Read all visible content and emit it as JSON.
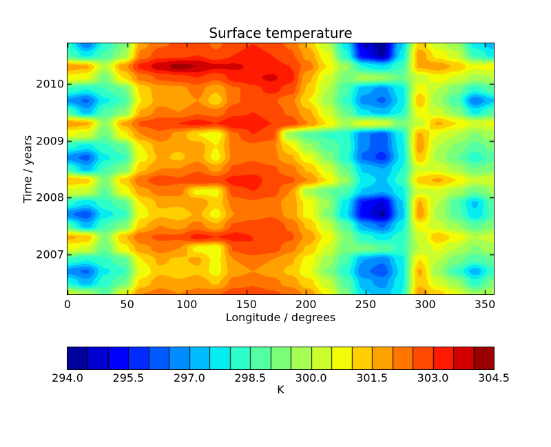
{
  "figure": {
    "background": "#ffffff",
    "text_color": "#000000"
  },
  "chart_data": {
    "type": "heatmap",
    "title": "Surface temperature",
    "xlabel": "Longitude / degrees",
    "ylabel": "Time / years",
    "colormap": "jet",
    "grid_lines": false,
    "x_range": [
      0,
      357.5
    ],
    "y_range": [
      2006.3,
      2010.71
    ],
    "x_ticks": [
      0,
      50,
      100,
      150,
      200,
      250,
      300,
      350
    ],
    "y_ticks": [
      2007,
      2008,
      2009,
      2010
    ],
    "levels": {
      "min": 294.0,
      "max": 304.5,
      "step": 0.5,
      "n_bins": 21
    },
    "colorbar": {
      "label": "K",
      "ticks": [
        294.0,
        295.5,
        297.0,
        298.5,
        300.0,
        301.5,
        303.0,
        304.5
      ]
    },
    "grid": {
      "x": [
        0,
        15.5,
        31.1,
        46.6,
        62.2,
        77.7,
        93.3,
        108.8,
        124.3,
        139.9,
        155.4,
        171.0,
        186.5,
        202.0,
        217.6,
        233.1,
        248.7,
        264.2,
        279.8,
        295.3,
        310.8,
        326.4,
        341.9,
        357.5
      ],
      "t": [
        2010.7,
        2010.5,
        2010.3,
        2010.1,
        2009.9,
        2009.7,
        2009.5,
        2009.3,
        2009.1,
        2008.9,
        2008.7,
        2008.5,
        2008.3,
        2008.1,
        2007.9,
        2007.7,
        2007.5,
        2007.3,
        2007.1,
        2006.9,
        2006.7,
        2006.5,
        2006.3
      ],
      "values": [
        [
          298.2,
          296.6,
          298.2,
          299.2,
          301.8,
          302.4,
          302.6,
          302.8,
          302.4,
          302.8,
          303.0,
          302.8,
          302.4,
          301.4,
          300.0,
          297.8,
          294.8,
          294.2,
          297.4,
          301.2,
          300.2,
          299.6,
          297.8,
          297.2
        ],
        [
          298.6,
          297.8,
          298.6,
          299.6,
          302.2,
          302.8,
          302.8,
          303.0,
          302.6,
          303.0,
          303.2,
          303.0,
          302.6,
          301.8,
          300.6,
          298.2,
          295.2,
          294.4,
          297.6,
          301.8,
          300.8,
          300.2,
          298.4,
          297.8
        ],
        [
          301.8,
          301.6,
          300.0,
          301.8,
          303.2,
          303.8,
          304.2,
          304.0,
          303.6,
          303.6,
          303.4,
          303.2,
          303.0,
          302.2,
          301.0,
          299.6,
          298.0,
          297.6,
          298.4,
          301.6,
          301.8,
          301.4,
          300.6,
          300.8
        ],
        [
          300.8,
          300.6,
          299.2,
          301.0,
          302.2,
          302.6,
          302.8,
          303.0,
          302.6,
          303.2,
          303.4,
          303.6,
          303.2,
          301.6,
          300.4,
          299.2,
          299.8,
          299.6,
          299.0,
          300.2,
          300.8,
          300.4,
          299.8,
          300.0
        ],
        [
          298.4,
          298.0,
          298.5,
          299.0,
          301.2,
          301.8,
          301.8,
          302.2,
          301.6,
          302.4,
          302.8,
          303.2,
          302.8,
          301.4,
          300.0,
          298.6,
          297.2,
          296.8,
          297.8,
          300.8,
          300.0,
          299.2,
          298.2,
          298.8
        ],
        [
          296.9,
          296.4,
          297.9,
          298.5,
          301.0,
          301.8,
          301.6,
          302.0,
          301.2,
          302.4,
          302.8,
          302.6,
          302.2,
          301.0,
          299.8,
          298.4,
          296.8,
          296.4,
          297.6,
          301.4,
          299.6,
          298.6,
          296.6,
          297.4
        ],
        [
          298.6,
          297.2,
          298.6,
          299.3,
          301.6,
          302.2,
          302.0,
          302.4,
          302.2,
          302.8,
          303.0,
          302.8,
          302.4,
          301.6,
          300.4,
          299.0,
          297.6,
          297.2,
          298.0,
          300.8,
          300.2,
          299.4,
          297.8,
          298.6
        ],
        [
          301.8,
          301.6,
          299.5,
          301.6,
          302.6,
          302.8,
          303.0,
          303.2,
          303.0,
          303.4,
          303.2,
          303.0,
          302.8,
          302.0,
          301.0,
          299.8,
          300.6,
          300.4,
          299.2,
          300.2,
          301.6,
          301.0,
          300.4,
          300.6
        ],
        [
          300.6,
          300.4,
          299.0,
          300.8,
          302.0,
          302.4,
          301.8,
          301.0,
          300.6,
          302.4,
          303.0,
          302.8,
          299.6,
          298.8,
          298.4,
          298.2,
          296.6,
          296.2,
          297.9,
          301.6,
          300.5,
          300.0,
          299.4,
          299.8
        ],
        [
          298.2,
          297.8,
          298.4,
          298.9,
          301.0,
          301.8,
          301.6,
          301.8,
          301.0,
          302.2,
          302.4,
          302.2,
          301.0,
          299.6,
          298.8,
          298.4,
          296.6,
          296.2,
          297.7,
          301.8,
          300.0,
          299.4,
          298.8,
          299.2
        ],
        [
          296.8,
          296.3,
          297.9,
          298.4,
          300.8,
          301.6,
          301.4,
          301.8,
          300.8,
          302.2,
          302.4,
          302.2,
          301.6,
          300.6,
          299.4,
          298.2,
          296.4,
          295.8,
          297.6,
          301.4,
          299.8,
          299.0,
          298.2,
          298.8
        ],
        [
          298.4,
          297.2,
          298.5,
          299.2,
          301.4,
          302.0,
          302.0,
          302.4,
          301.8,
          302.6,
          302.8,
          302.6,
          302.2,
          301.4,
          300.4,
          299.0,
          297.4,
          297.0,
          298.0,
          300.4,
          300.4,
          299.8,
          299.0,
          299.4
        ],
        [
          301.4,
          301.2,
          299.3,
          301.2,
          302.4,
          302.8,
          302.6,
          303.0,
          302.8,
          303.2,
          303.2,
          302.8,
          302.6,
          302.0,
          301.0,
          299.6,
          297.8,
          297.4,
          298.2,
          301.2,
          301.6,
          301.0,
          300.2,
          300.4
        ],
        [
          300.4,
          300.2,
          298.9,
          300.6,
          301.8,
          302.2,
          302.2,
          300.8,
          300.8,
          302.8,
          303.0,
          302.8,
          302.0,
          299.8,
          299.0,
          298.6,
          297.4,
          297.0,
          297.8,
          300.4,
          300.4,
          299.8,
          299.0,
          299.6
        ],
        [
          298.2,
          297.6,
          298.3,
          298.8,
          301.0,
          301.6,
          301.6,
          302.0,
          301.2,
          302.2,
          302.4,
          302.2,
          301.8,
          300.8,
          299.6,
          297.8,
          295.4,
          294.8,
          297.4,
          301.6,
          300.0,
          298.6,
          297.4,
          298.8
        ],
        [
          296.6,
          296.2,
          297.8,
          298.3,
          300.8,
          301.4,
          301.2,
          301.6,
          300.8,
          302.0,
          302.2,
          302.4,
          301.8,
          300.8,
          299.4,
          297.6,
          295.2,
          294.4,
          297.2,
          301.8,
          299.8,
          298.8,
          297.6,
          298.6
        ],
        [
          298.6,
          297.2,
          298.5,
          299.2,
          301.4,
          302.0,
          301.8,
          302.2,
          301.6,
          302.6,
          302.8,
          303.0,
          302.4,
          301.4,
          300.2,
          298.8,
          297.0,
          296.4,
          297.8,
          300.8,
          300.2,
          299.6,
          298.8,
          299.4
        ],
        [
          301.6,
          301.4,
          299.4,
          301.4,
          302.4,
          302.6,
          302.6,
          303.2,
          303.0,
          303.2,
          303.0,
          302.8,
          302.6,
          301.8,
          300.8,
          299.4,
          298.2,
          297.8,
          298.2,
          300.2,
          301.4,
          300.8,
          300.0,
          300.2
        ],
        [
          300.6,
          300.4,
          299.0,
          300.8,
          301.8,
          302.2,
          302.0,
          300.8,
          300.6,
          302.6,
          303.0,
          302.8,
          302.2,
          301.4,
          300.4,
          299.2,
          299.2,
          298.9,
          298.4,
          300.0,
          300.6,
          300.0,
          299.4,
          299.8
        ],
        [
          298.4,
          298.0,
          298.4,
          298.8,
          301.0,
          301.6,
          301.4,
          301.6,
          300.8,
          302.0,
          302.2,
          302.0,
          301.6,
          300.8,
          299.8,
          298.6,
          297.0,
          296.6,
          297.8,
          301.0,
          300.0,
          299.2,
          298.6,
          299.0
        ],
        [
          296.8,
          296.4,
          297.9,
          298.4,
          300.6,
          301.4,
          301.2,
          301.4,
          300.8,
          301.8,
          302.0,
          301.8,
          301.4,
          300.6,
          299.4,
          298.2,
          296.6,
          296.2,
          297.6,
          301.6,
          299.6,
          298.4,
          297.2,
          298.4
        ],
        [
          298.0,
          297.2,
          298.3,
          299.0,
          301.2,
          301.8,
          301.6,
          301.8,
          301.4,
          302.2,
          302.4,
          302.2,
          301.8,
          301.2,
          300.2,
          298.8,
          297.2,
          296.8,
          297.8,
          301.4,
          300.4,
          299.6,
          298.2,
          299.2
        ],
        [
          300.2,
          299.8,
          298.8,
          300.5,
          302.0,
          302.2,
          302.0,
          302.2,
          302.4,
          302.8,
          302.8,
          302.6,
          302.4,
          301.8,
          300.8,
          299.2,
          297.6,
          297.2,
          298.0,
          301.8,
          301.2,
          300.6,
          299.6,
          300.0
        ]
      ]
    }
  }
}
